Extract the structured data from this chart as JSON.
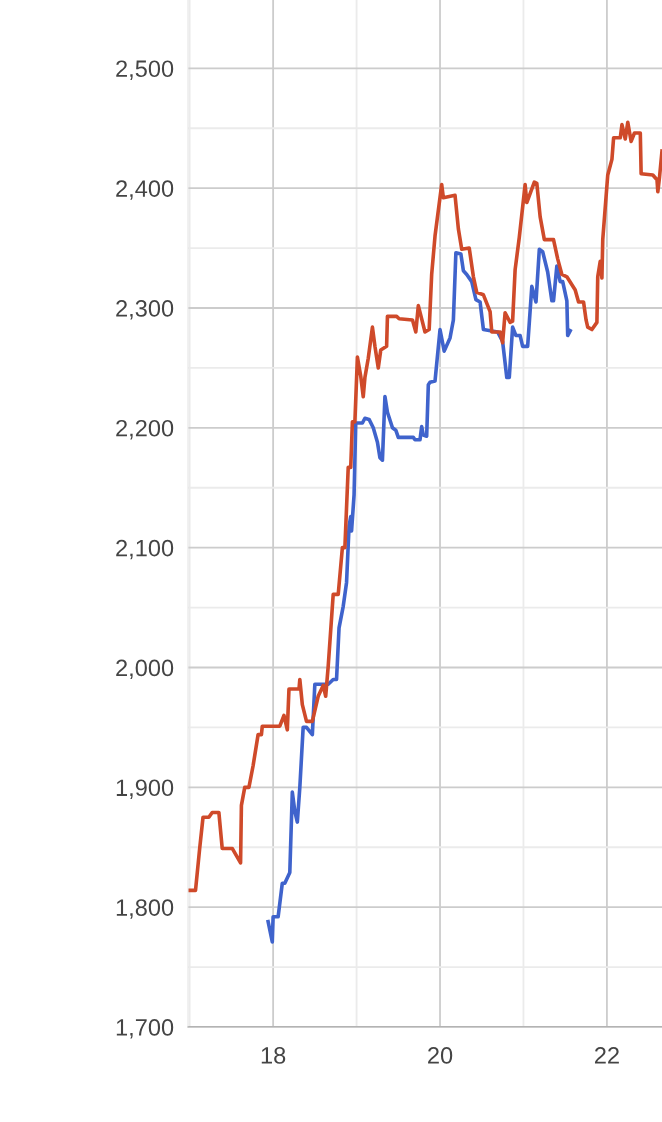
{
  "chart_data": {
    "type": "line",
    "grid": true,
    "line_style": "solid",
    "marker": "none",
    "xlim": [
      16.98,
      22.66
    ],
    "xticks": [
      {
        "value": 17,
        "label": null
      },
      18,
      {
        "value": 19,
        "label": null
      },
      20,
      {
        "value": 21,
        "label": null
      },
      22
    ],
    "ylim": [
      1700,
      2557
    ],
    "yticks": [
      {
        "value": 1700,
        "label": "1,700"
      },
      {
        "value": 1750,
        "label": null
      },
      {
        "value": 1800,
        "label": "1,800"
      },
      {
        "value": 1850,
        "label": null
      },
      {
        "value": 1900,
        "label": "1,900"
      },
      {
        "value": 1950,
        "label": null
      },
      {
        "value": 2000,
        "label": "2,000"
      },
      {
        "value": 2050,
        "label": null
      },
      {
        "value": 2100,
        "label": "2,100"
      },
      {
        "value": 2150,
        "label": null
      },
      {
        "value": 2200,
        "label": "2,200"
      },
      {
        "value": 2250,
        "label": null
      },
      {
        "value": 2300,
        "label": "2,300"
      },
      {
        "value": 2350,
        "label": null
      },
      {
        "value": 2400,
        "label": "2,400"
      },
      {
        "value": 2450,
        "label": null
      },
      {
        "value": 2500,
        "label": "2,500"
      }
    ],
    "series": [
      {
        "color": "#3f63cc",
        "x": [
          17.94,
          17.99,
          18.0,
          18.06,
          18.11,
          18.14,
          18.2,
          18.23,
          18.26,
          18.29,
          18.32,
          18.36,
          18.4,
          18.47,
          18.5,
          18.66,
          18.72,
          18.76,
          18.79,
          18.84,
          18.88,
          18.91,
          18.93,
          18.94,
          18.97,
          18.99,
          19.07,
          19.1,
          19.15,
          19.2,
          19.25,
          19.28,
          19.31,
          19.34,
          19.37,
          19.43,
          19.47,
          19.5,
          19.68,
          19.7,
          19.76,
          19.78,
          19.8,
          19.84,
          19.86,
          19.88,
          19.94,
          20.0,
          20.05,
          20.12,
          20.16,
          20.19,
          20.25,
          20.28,
          20.32,
          20.38,
          20.43,
          20.48,
          20.52,
          20.69,
          20.75,
          20.8,
          20.83,
          20.87,
          20.91,
          20.96,
          20.99,
          21.05,
          21.1,
          21.15,
          21.19,
          21.23,
          21.29,
          21.34,
          21.36,
          21.4,
          21.44,
          21.47,
          21.52,
          21.53,
          21.56
        ],
        "values": [
          1788,
          1771,
          1792,
          1792,
          1820,
          1820,
          1829,
          1896,
          1880,
          1871,
          1900,
          1950,
          1950,
          1944,
          1986,
          1986,
          1990,
          1990,
          2033,
          2051,
          2071,
          2118,
          2126,
          2114,
          2144,
          2204,
          2204,
          2208,
          2207,
          2200,
          2188,
          2175,
          2173,
          2226,
          2213,
          2200,
          2198,
          2192,
          2192,
          2190,
          2190,
          2201,
          2194,
          2193,
          2236,
          2238,
          2239,
          2282,
          2264,
          2275,
          2290,
          2346,
          2345,
          2331,
          2328,
          2322,
          2307,
          2305,
          2282,
          2280,
          2272,
          2242,
          2242,
          2284,
          2277,
          2277,
          2268,
          2268,
          2318,
          2305,
          2349,
          2347,
          2330,
          2306,
          2306,
          2335,
          2322,
          2322,
          2306,
          2277,
          2281
        ]
      },
      {
        "color": "#cf4a2a",
        "x": [
          16.98,
          17.07,
          17.12,
          17.16,
          17.23,
          17.27,
          17.35,
          17.39,
          17.51,
          17.61,
          17.62,
          17.66,
          17.71,
          17.76,
          17.82,
          17.86,
          17.87,
          18.08,
          18.13,
          18.17,
          18.19,
          18.31,
          18.32,
          18.35,
          18.4,
          18.47,
          18.54,
          18.6,
          18.63,
          18.66,
          18.72,
          18.78,
          18.83,
          18.86,
          18.9,
          18.93,
          18.95,
          18.98,
          19.01,
          19.05,
          19.08,
          19.1,
          19.14,
          19.19,
          19.22,
          19.26,
          19.29,
          19.36,
          19.37,
          19.48,
          19.51,
          19.67,
          19.71,
          19.74,
          19.82,
          19.87,
          19.9,
          19.94,
          20.02,
          20.04,
          20.18,
          20.22,
          20.26,
          20.35,
          20.4,
          20.44,
          20.52,
          20.6,
          20.62,
          20.72,
          20.75,
          20.78,
          20.84,
          20.87,
          20.9,
          20.95,
          21.02,
          21.04,
          21.13,
          21.16,
          21.2,
          21.25,
          21.36,
          21.41,
          21.46,
          21.52,
          21.62,
          21.66,
          21.72,
          21.75,
          21.77,
          21.82,
          21.88,
          21.89,
          21.92,
          21.94,
          21.95,
          22.01,
          22.06,
          22.08,
          22.16,
          22.18,
          22.22,
          22.25,
          22.29,
          22.33,
          22.4,
          22.41,
          22.55,
          22.6,
          22.61,
          22.63,
          22.66
        ],
        "values": [
          1814,
          1814,
          1849,
          1875,
          1875,
          1879,
          1879,
          1849,
          1849,
          1837,
          1885,
          1900,
          1900,
          1918,
          1944,
          1944,
          1951,
          1951,
          1960,
          1948,
          1982,
          1982,
          1990,
          1969,
          1955,
          1955,
          1976,
          1985,
          1976,
          2001,
          2061,
          2061,
          2100,
          2100,
          2167,
          2167,
          2205,
          2205,
          2259,
          2243,
          2226,
          2242,
          2258,
          2284,
          2268,
          2250,
          2265,
          2268,
          2293,
          2293,
          2291,
          2290,
          2280,
          2302,
          2280,
          2282,
          2328,
          2360,
          2403,
          2392,
          2394,
          2366,
          2349,
          2350,
          2326,
          2313,
          2311,
          2297,
          2280,
          2280,
          2271,
          2296,
          2288,
          2289,
          2332,
          2359,
          2403,
          2388,
          2405,
          2404,
          2376,
          2357,
          2357,
          2341,
          2328,
          2326,
          2315,
          2305,
          2305,
          2290,
          2284,
          2282,
          2288,
          2326,
          2339,
          2325,
          2357,
          2411,
          2424,
          2442,
          2442,
          2453,
          2441,
          2455,
          2439,
          2446,
          2446,
          2412,
          2411,
          2407,
          2397,
          2409,
          2431
        ]
      }
    ]
  }
}
